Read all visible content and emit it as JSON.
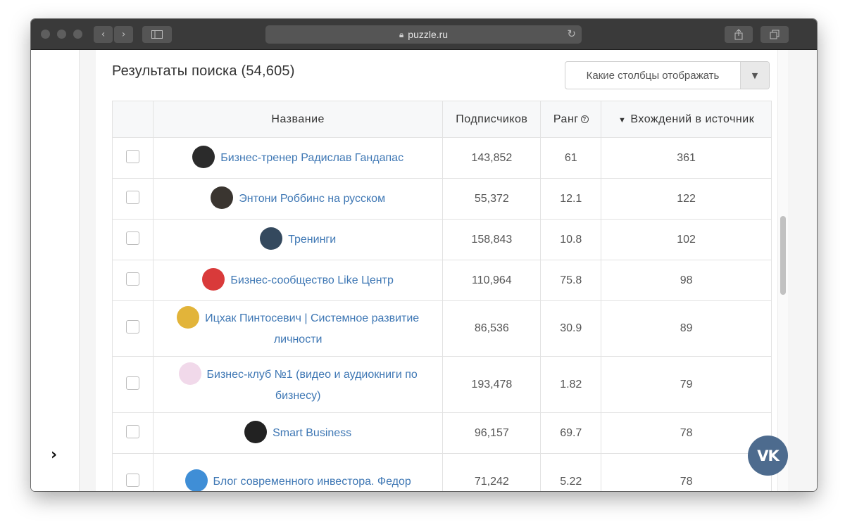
{
  "browser": {
    "url": "puzzle.ru",
    "buttons": {
      "back_icon": "chevron-left-icon",
      "forward_icon": "chevron-right-icon",
      "sidebar_icon": "sidebar-icon",
      "share_icon": "share-icon",
      "tabs_icon": "tabs-icon",
      "reload_icon": "reload-icon"
    }
  },
  "page": {
    "results_title": "Результаты поиска (54,605)",
    "columns_select": "Какие столбцы отображать",
    "table": {
      "headers": {
        "name": "Название",
        "subscribers": "Подписчиков",
        "rank": "Ранг",
        "occurrences": "Вхождений в источник"
      },
      "rows": [
        {
          "name": "Бизнес-тренер Радислав Гандапас",
          "subscribers": "143,852",
          "rank": "61",
          "occurrences": "361",
          "avatar_color": "#2b2b2b"
        },
        {
          "name": "Энтони Роббинс на русском",
          "subscribers": "55,372",
          "rank": "12.1",
          "occurrences": "122",
          "avatar_color": "#3a3530"
        },
        {
          "name": "Тренинги",
          "subscribers": "158,843",
          "rank": "10.8",
          "occurrences": "102",
          "avatar_color": "#34495e"
        },
        {
          "name": "Бизнес-сообщество Like Центр",
          "subscribers": "110,964",
          "rank": "75.8",
          "occurrences": "98",
          "avatar_color": "#d93a3a"
        },
        {
          "name": "Ицхак Пинтосевич | Системное развитие личности",
          "subscribers": "86,536",
          "rank": "30.9",
          "occurrences": "89",
          "avatar_color": "#e2b43a"
        },
        {
          "name": "Бизнес-клуб №1 (видео и аудиокниги по бизнесу)",
          "subscribers": "193,478",
          "rank": "1.82",
          "occurrences": "79",
          "avatar_color": "#f1d9ea"
        },
        {
          "name": "Smart Business",
          "subscribers": "96,157",
          "rank": "69.7",
          "occurrences": "78",
          "avatar_color": "#222222"
        },
        {
          "name": "Блог современного инвестора. Федор",
          "subscribers": "71,242",
          "rank": "5.22",
          "occurrences": "78",
          "avatar_color": "#3f8ed6"
        }
      ]
    },
    "vk_label": "VK"
  }
}
